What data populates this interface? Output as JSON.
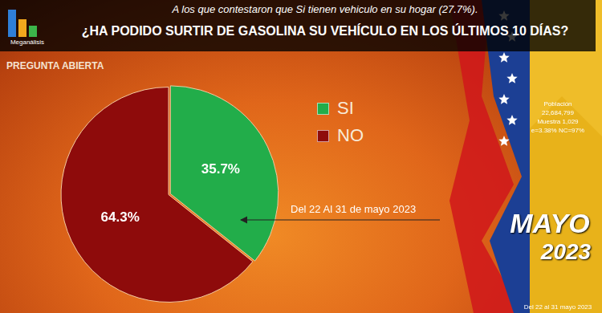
{
  "page": {
    "brand": "Meganálisis",
    "question_type": "PREGUNTA ABIERTA",
    "side_panel": {
      "lines": [
        "Población",
        "22,684,799",
        "Muestra 1,029",
        "e=3.38% NC=97%"
      ],
      "month": "MAYO",
      "year": "2023",
      "dates": "Del 22 al 31 mayo 2023"
    }
  },
  "chart_data": {
    "type": "pie",
    "subtitle": "A los que contestaron que Si tienen vehiculo en su hogar (27.7%).",
    "title": "¿HA PODIDO SURTIR DE GASOLINA SU VEHÍCULO EN LOS ÚLTIMOS 10 DÍAS?",
    "categories": [
      "SI",
      "NO"
    ],
    "values": [
      35.7,
      64.3
    ],
    "value_labels": [
      "35.7%",
      "64.3%"
    ],
    "colors": [
      "#22ad4a",
      "#8e0b0b"
    ],
    "data_labels": true,
    "legend": "right",
    "annotations": [
      "Del 22 Al 31 de mayo 2023"
    ]
  }
}
